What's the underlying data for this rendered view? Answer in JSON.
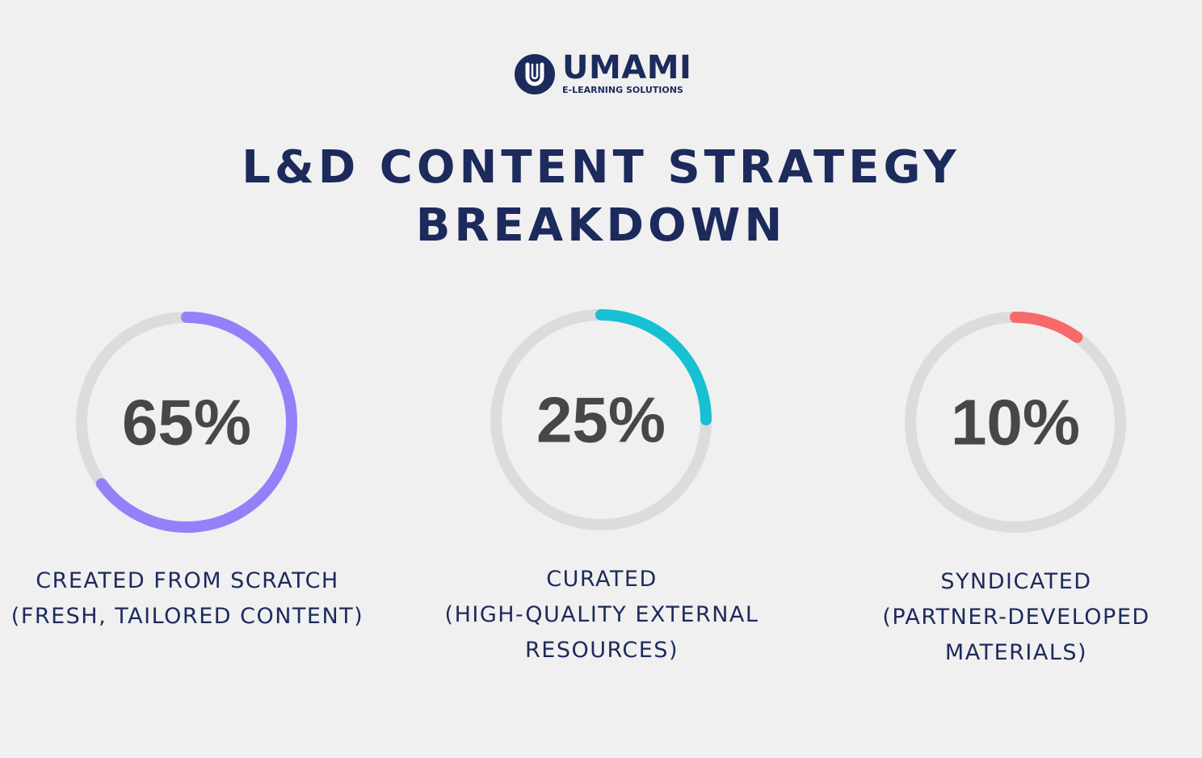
{
  "logo": {
    "name": "UMAMI",
    "tagline": "E-LEARNING SOLUTIONS",
    "letter": "U"
  },
  "title": {
    "line1": "L&D CONTENT STRATEGY",
    "line2": "BREAKDOWN"
  },
  "colors": {
    "navy": "#1c2a5c",
    "track": "#dcdcdc",
    "scratch": "#9580fa",
    "curated": "#18c0d3",
    "syndicated": "#f86a6a"
  },
  "chart_data": {
    "type": "progress-ring",
    "items": [
      {
        "value": 65,
        "label": "65%",
        "caption_lines": [
          "CREATED FROM SCRATCH",
          "(FRESH, TAILORED CONTENT)"
        ],
        "color": "#9580fa"
      },
      {
        "value": 25,
        "label": "25%",
        "caption_lines": [
          "CURATED",
          "(HIGH-QUALITY EXTERNAL",
          "RESOURCES)"
        ],
        "color": "#18c0d3"
      },
      {
        "value": 10,
        "label": "10%",
        "caption_lines": [
          "SYNDICATED",
          "(PARTNER-DEVELOPED",
          "MATERIALS)"
        ],
        "color": "#f86a6a"
      }
    ]
  }
}
